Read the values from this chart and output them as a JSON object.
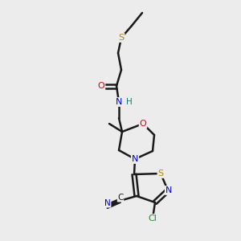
{
  "bg_color": "#ececec",
  "bond_color": "#1a1a1a",
  "bond_width": 1.8,
  "atom_colors": {
    "S": "#b8860b",
    "O": "#dd0000",
    "N": "#0000cc",
    "Cl": "#228B22",
    "C": "#1a1a1a",
    "H": "#008080"
  },
  "figsize": [
    3.0,
    3.0
  ],
  "dpi": 100
}
